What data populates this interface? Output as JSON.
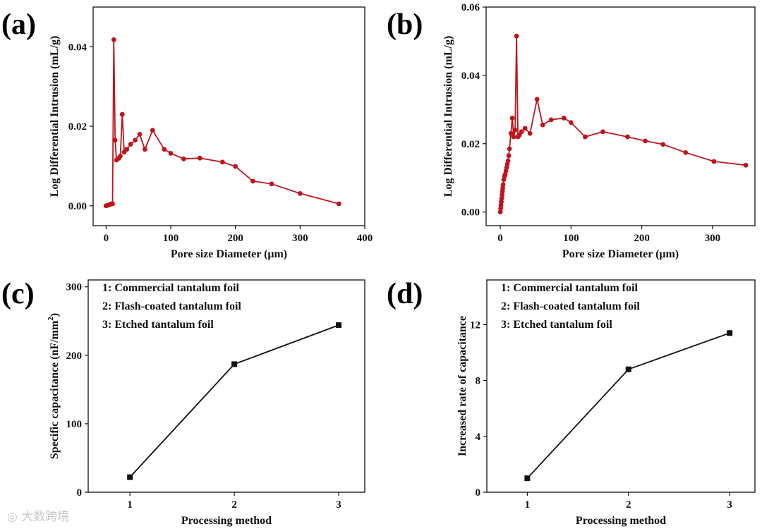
{
  "chart_data": [
    {
      "type": "line",
      "panel": "(a)",
      "xlabel": "Pore size Diameter (μm)",
      "ylabel": "Log Differential Intrusion (mL/g)",
      "xlim": [
        -20,
        400
      ],
      "ylim": [
        -0.005,
        0.05
      ],
      "xticks": [
        0,
        100,
        200,
        300,
        400
      ],
      "yticks": [
        0.0,
        0.02,
        0.04
      ],
      "ytick_labels": [
        "0.00",
        "0.02",
        "0.04"
      ],
      "color": "#c0141c",
      "series": [
        {
          "name": "a",
          "x": [
            0,
            2,
            4,
            6,
            8,
            10,
            12,
            14,
            16,
            18,
            20,
            22,
            25,
            28,
            32,
            38,
            45,
            52,
            60,
            72,
            90,
            100,
            120,
            145,
            180,
            200,
            227,
            256,
            300,
            360
          ],
          "y": [
            0.0,
            0.0001,
            0.0002,
            0.0003,
            0.0005,
            0.0005,
            0.0418,
            0.0165,
            0.0115,
            0.0118,
            0.012,
            0.0125,
            0.023,
            0.0135,
            0.0142,
            0.0155,
            0.0165,
            0.018,
            0.0142,
            0.019,
            0.0142,
            0.0132,
            0.0118,
            0.012,
            0.011,
            0.0099,
            0.0062,
            0.0055,
            0.0031,
            0.0005
          ]
        }
      ]
    },
    {
      "type": "line",
      "panel": "(b)",
      "xlabel": "Pore size Diameter (μm)",
      "ylabel": "Log Differential Intrusion (mL/g)",
      "xlim": [
        -20,
        360
      ],
      "ylim": [
        -0.004,
        0.06
      ],
      "xticks": [
        0,
        100,
        200,
        300
      ],
      "yticks": [
        0.0,
        0.02,
        0.04,
        0.06
      ],
      "ytick_labels": [
        "0.00",
        "0.02",
        "0.04",
        "0.06"
      ],
      "color": "#c0141c",
      "series": [
        {
          "name": "b",
          "x": [
            0,
            0.5,
            1,
            1.5,
            2,
            2.5,
            3,
            3.5,
            4,
            5,
            6,
            7,
            8,
            9,
            10,
            11,
            12,
            13,
            15,
            17,
            19,
            21,
            23,
            25,
            27,
            30,
            35,
            42,
            52,
            60,
            72,
            90,
            100,
            120,
            145,
            180,
            205,
            230,
            262,
            302,
            347
          ],
          "y": [
            0.0,
            0.001,
            0.002,
            0.003,
            0.004,
            0.005,
            0.006,
            0.007,
            0.008,
            0.0095,
            0.0105,
            0.011,
            0.012,
            0.013,
            0.014,
            0.015,
            0.0165,
            0.0185,
            0.023,
            0.0275,
            0.022,
            0.024,
            0.0515,
            0.022,
            0.0225,
            0.0235,
            0.0245,
            0.023,
            0.033,
            0.0255,
            0.027,
            0.0275,
            0.0262,
            0.022,
            0.0235,
            0.022,
            0.0208,
            0.0198,
            0.0174,
            0.0148,
            0.0137
          ]
        }
      ]
    },
    {
      "type": "line",
      "panel": "(c)",
      "xlabel": "Processing method",
      "ylabel": "Specific capacitance (nF/mm",
      "ylabel_sup": "2",
      "ylabel_close": ")",
      "xlim": [
        0.6,
        3.25
      ],
      "ylim": [
        0,
        310
      ],
      "xticks": [
        1,
        2,
        3
      ],
      "yticks": [
        0,
        100,
        200,
        300
      ],
      "legend": [
        "1: Commercial tantalum foil",
        "2: Flash-coated tantalum foil",
        "3: Etched tantalum foil"
      ],
      "color": "#111111",
      "series": [
        {
          "name": "c",
          "x": [
            1,
            2,
            3
          ],
          "y": [
            22,
            187,
            244
          ]
        }
      ]
    },
    {
      "type": "line",
      "panel": "(d)",
      "xlabel": "Processing method",
      "ylabel": "Increased rate of capacitance",
      "xlim": [
        0.6,
        3.25
      ],
      "ylim": [
        0,
        15.2
      ],
      "xticks": [
        1,
        2,
        3
      ],
      "yticks": [
        0,
        4,
        8,
        12
      ],
      "legend": [
        "1: Commercial tantalum foil",
        "2: Flash-coated tantalum foil",
        "3: Etched tantalum foil"
      ],
      "color": "#111111",
      "series": [
        {
          "name": "d",
          "x": [
            1,
            2,
            3
          ],
          "y": [
            1.0,
            8.8,
            11.4
          ]
        }
      ]
    }
  ],
  "watermark": "大数跨境"
}
